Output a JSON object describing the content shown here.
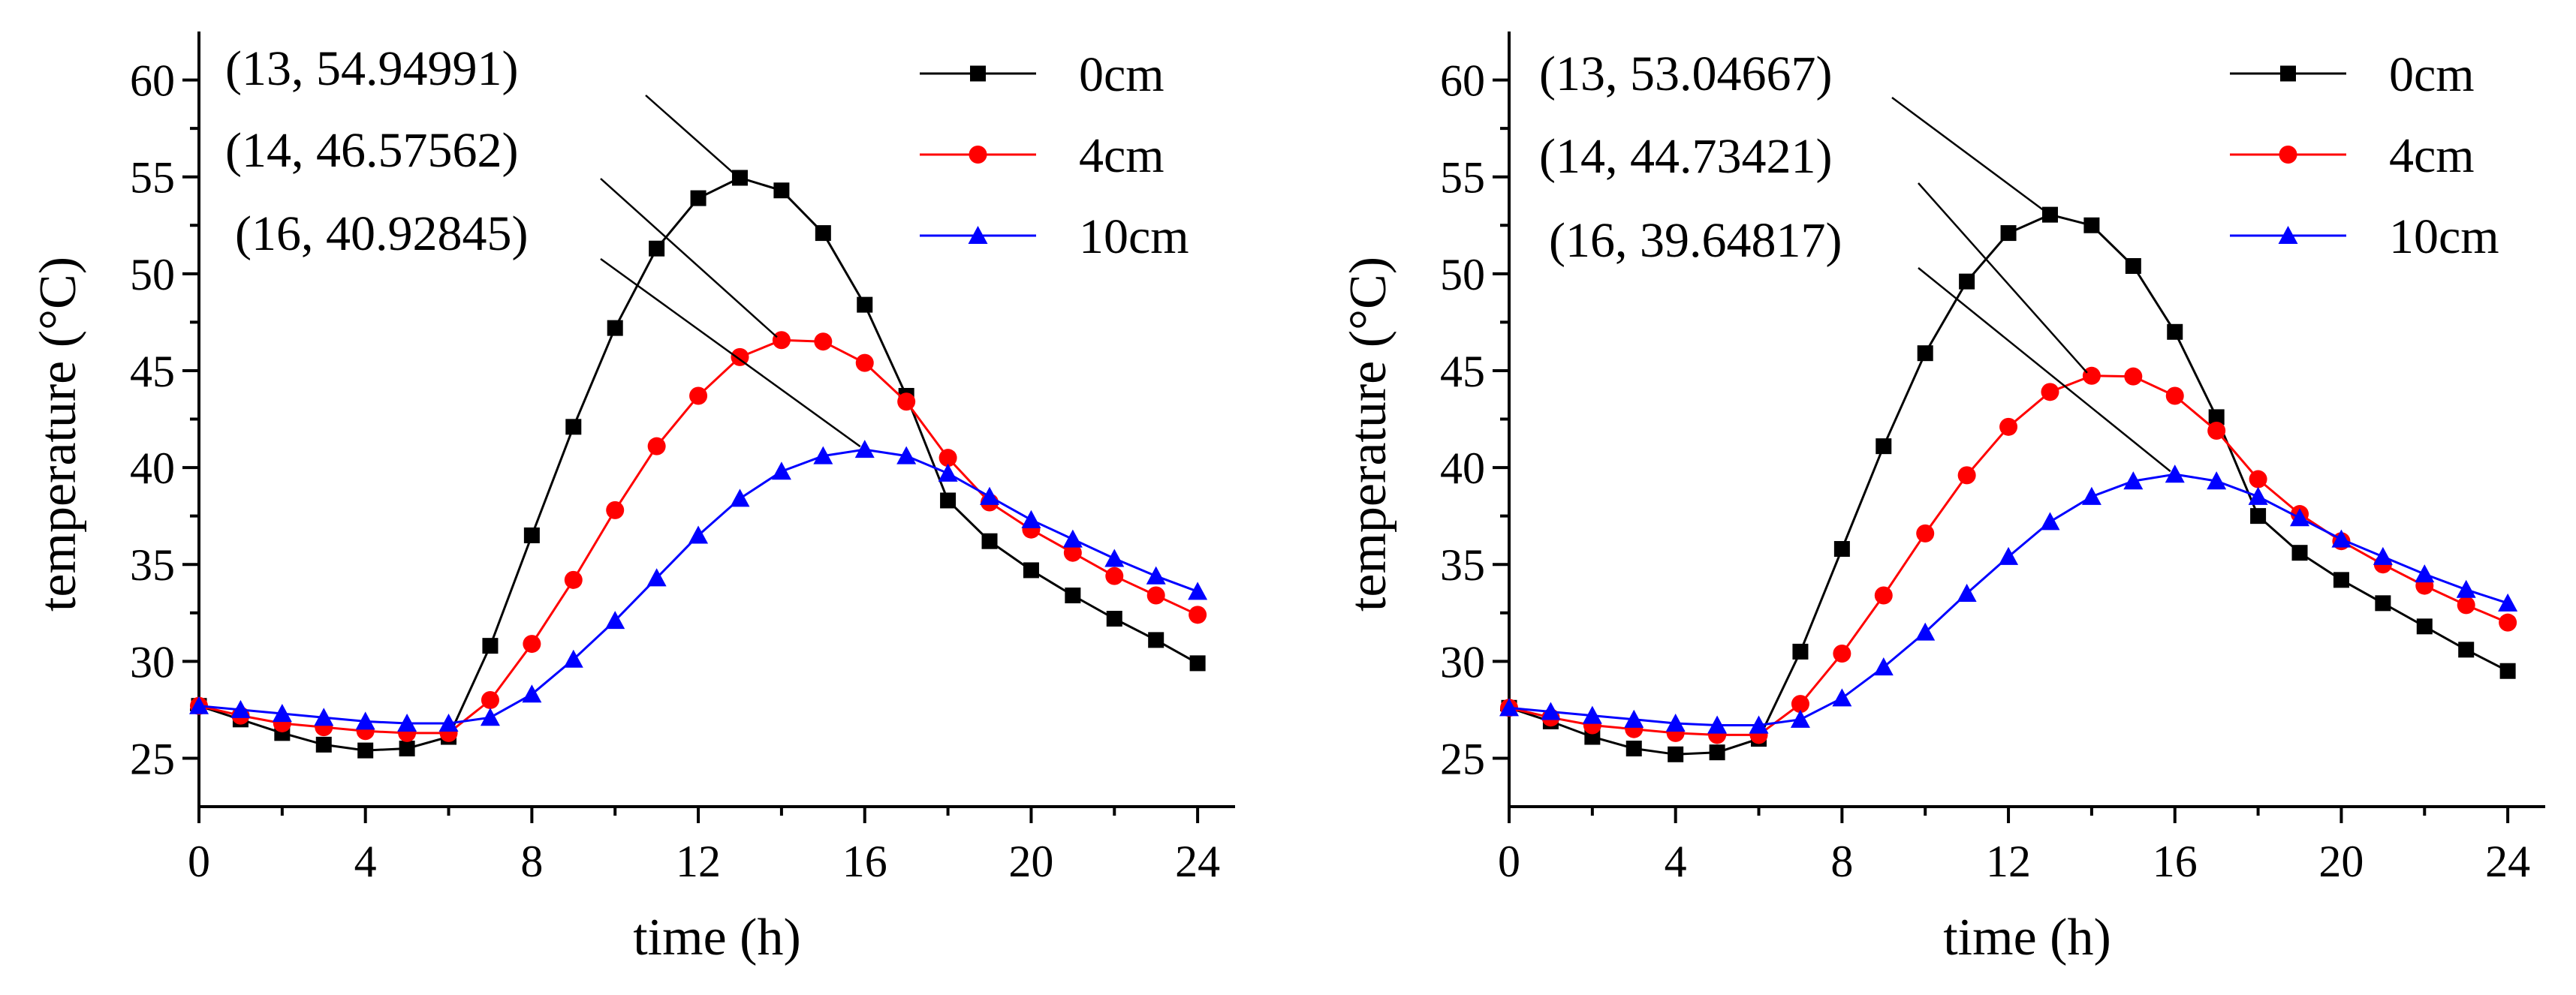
{
  "chart_data": [
    {
      "type": "line",
      "xlabel": "time (h)",
      "ylabel": "temperature (°C)",
      "xlim": [
        0,
        24.9
      ],
      "ylim": [
        22.5,
        62.5
      ],
      "x_ticks": [
        0,
        4,
        8,
        12,
        16,
        20,
        24
      ],
      "y_ticks": [
        25,
        30,
        35,
        40,
        45,
        50,
        55,
        60
      ],
      "legend_position": "top-right",
      "x": [
        0,
        1,
        2,
        3,
        4,
        5,
        6,
        7,
        8,
        9,
        10,
        11,
        12,
        13,
        14,
        15,
        16,
        17,
        18,
        19,
        20,
        21,
        22,
        23,
        24
      ],
      "series": [
        {
          "name": "0cm",
          "color": "#000000",
          "marker": "square",
          "values": [
            27.7,
            27.0,
            26.3,
            25.7,
            25.4,
            25.5,
            26.1,
            30.8,
            36.5,
            42.1,
            47.2,
            51.3,
            53.9,
            54.94991,
            54.3,
            52.1,
            48.4,
            43.7,
            38.3,
            36.2,
            34.7,
            33.4,
            32.2,
            31.1,
            29.9
          ]
        },
        {
          "name": "4cm",
          "color": "#ff0000",
          "marker": "circle",
          "values": [
            27.7,
            27.2,
            26.8,
            26.6,
            26.4,
            26.3,
            26.3,
            28.0,
            30.9,
            34.2,
            37.8,
            41.1,
            43.7,
            45.7,
            46.57562,
            46.5,
            45.4,
            43.4,
            40.5,
            38.2,
            36.8,
            35.6,
            34.4,
            33.4,
            32.4
          ]
        },
        {
          "name": "10cm",
          "color": "#0000ff",
          "marker": "triangle",
          "values": [
            27.7,
            27.5,
            27.3,
            27.1,
            26.9,
            26.8,
            26.8,
            27.1,
            28.3,
            30.1,
            32.1,
            34.3,
            36.5,
            38.4,
            39.8,
            40.6,
            40.92845,
            40.6,
            39.7,
            38.5,
            37.3,
            36.3,
            35.3,
            34.4,
            33.6
          ]
        }
      ],
      "annotations": [
        {
          "text": "(13, 54.94991)",
          "x": 13,
          "y": 54.94991,
          "series": "0cm"
        },
        {
          "text": "(14, 46.57562)",
          "x": 14,
          "y": 46.57562,
          "series": "4cm"
        },
        {
          "text": "(16, 40.92845)",
          "x": 16,
          "y": 40.92845,
          "series": "10cm"
        }
      ]
    },
    {
      "type": "line",
      "xlabel": "time (h)",
      "ylabel": "temperature (°C)",
      "xlim": [
        0,
        24.9
      ],
      "ylim": [
        22.5,
        62.5
      ],
      "x_ticks": [
        0,
        4,
        8,
        12,
        16,
        20,
        24
      ],
      "y_ticks": [
        25,
        30,
        35,
        40,
        45,
        50,
        55,
        60
      ],
      "legend_position": "top-right",
      "x": [
        0,
        1,
        2,
        3,
        4,
        5,
        6,
        7,
        8,
        9,
        10,
        11,
        12,
        13,
        14,
        15,
        16,
        17,
        18,
        19,
        20,
        21,
        22,
        23,
        24
      ],
      "series": [
        {
          "name": "0cm",
          "color": "#000000",
          "marker": "square",
          "values": [
            27.6,
            26.9,
            26.1,
            25.5,
            25.2,
            25.3,
            26.0,
            30.5,
            35.8,
            41.1,
            45.9,
            49.6,
            52.1,
            53.04667,
            52.5,
            50.4,
            47.0,
            42.6,
            37.5,
            35.6,
            34.2,
            33.0,
            31.8,
            30.6,
            29.5
          ]
        },
        {
          "name": "4cm",
          "color": "#ff0000",
          "marker": "circle",
          "values": [
            27.6,
            27.1,
            26.7,
            26.5,
            26.3,
            26.2,
            26.2,
            27.8,
            30.4,
            33.4,
            36.6,
            39.6,
            42.1,
            43.9,
            44.73421,
            44.7,
            43.7,
            41.9,
            39.4,
            37.6,
            36.2,
            35.0,
            33.9,
            32.9,
            32.0
          ]
        },
        {
          "name": "10cm",
          "color": "#0000ff",
          "marker": "triangle",
          "values": [
            27.6,
            27.4,
            27.2,
            27.0,
            26.8,
            26.7,
            26.7,
            27.0,
            28.1,
            29.7,
            31.5,
            33.5,
            35.4,
            37.2,
            38.5,
            39.3,
            39.64817,
            39.3,
            38.5,
            37.4,
            36.3,
            35.4,
            34.5,
            33.7,
            33.0
          ]
        }
      ],
      "annotations": [
        {
          "text": "(13, 53.04667)",
          "x": 13,
          "y": 53.04667,
          "series": "0cm"
        },
        {
          "text": "(14, 44.73421)",
          "x": 14,
          "y": 44.73421,
          "series": "4cm"
        },
        {
          "text": "(16, 39.64817)",
          "x": 16,
          "y": 39.64817,
          "series": "10cm"
        }
      ]
    }
  ]
}
